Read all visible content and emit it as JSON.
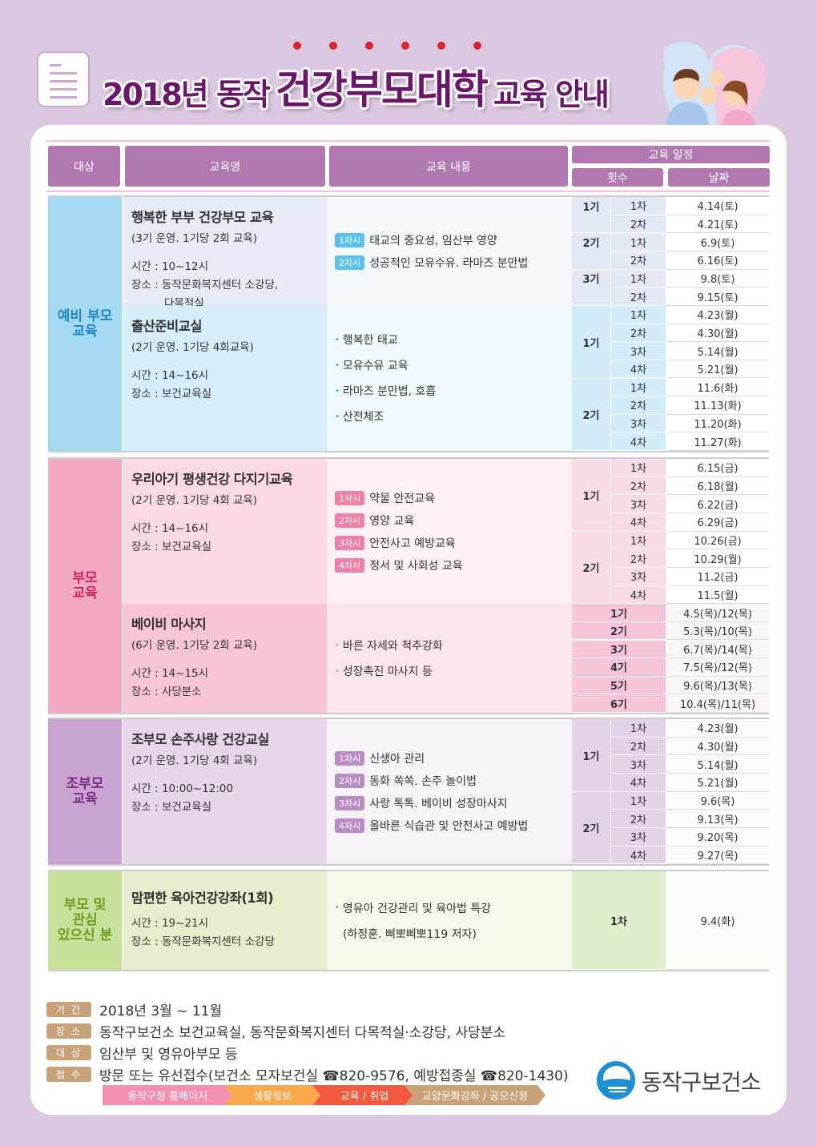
{
  "title": {
    "part1": "2018년 동작",
    "part2": "건강부모대학",
    "part3": "교육 안내"
  },
  "header": {
    "target": "대상",
    "name": "교육명",
    "content": "교육 내용",
    "schedule": "교육 일정",
    "term": "횟수",
    "date": "날짜"
  },
  "colors": {
    "header": "#b077b0",
    "title": "#6a176b",
    "accent_dots": "#d9252f"
  },
  "sections": [
    {
      "target": "예비 부모\n교육",
      "color": "#1f86c8",
      "tbg": "#a3d9f1",
      "badge": "#5bc0eb",
      "bullet": "#2ea7e0",
      "programs": [
        {
          "name": "행복한 부부 건강부모 교육",
          "sub": "(3기 운영. 1기당 2회 교육)",
          "time": "시간 : 10~12시",
          "place": [
            "장소 : 동작문화복지센터 소강당,",
            "다목적실"
          ],
          "nbg": "#e6ebf6",
          "cbg": "#f4f7fc",
          "sbg": "#e3e8f5",
          "dbg": "#ffffff",
          "content": [
            {
              "badge": "1차시",
              "text": "태교의 중요성, 임산부 영양"
            },
            {
              "badge": "2차시",
              "text": "성공적인 모유수유. 라마즈 분만법"
            }
          ],
          "groups": [
            {
              "term": "1기",
              "top": true,
              "rows": [
                [
                  "1차",
                  "4.14(토)"
                ],
                [
                  "2차",
                  "4.21(토)"
                ]
              ]
            },
            {
              "term": "2기",
              "top": true,
              "rows": [
                [
                  "1차",
                  "6.9(토)"
                ],
                [
                  "2차",
                  "6.16(토)"
                ]
              ]
            },
            {
              "term": "3기",
              "top": true,
              "rows": [
                [
                  "1차",
                  "9.8(토)"
                ],
                [
                  "2차",
                  "9.15(토)"
                ]
              ]
            }
          ]
        },
        {
          "name": "출산준비교실",
          "sub": "(2기 운영. 1기당 4회교육)",
          "time": "시간 : 14~16시",
          "place": [
            "장소 : 보건교육실"
          ],
          "nbg": "#d6eefa",
          "cbg": "#f0f9fe",
          "sbg": "#d3ecf9",
          "dbg": "#ffffff",
          "content": [
            {
              "bullet": "행복한 태교"
            },
            {
              "bullet": "모유수유 교육"
            },
            {
              "bullet": "라마즈 분만법, 호흡"
            },
            {
              "bullet": "산전체조"
            }
          ],
          "groups": [
            {
              "term": "1기",
              "rows": [
                [
                  "1차",
                  "4.23(월)"
                ],
                [
                  "2차",
                  "4.30(월)"
                ],
                [
                  "3차",
                  "5.14(월)"
                ],
                [
                  "4차",
                  "5.21(월)"
                ]
              ]
            },
            {
              "term": "2기",
              "rows": [
                [
                  "1차",
                  "11.6(화)"
                ],
                [
                  "2차",
                  "11.13(화)"
                ],
                [
                  "3차",
                  "11.20(화)"
                ],
                [
                  "4차",
                  "11.27(화)"
                ]
              ]
            }
          ]
        }
      ]
    },
    {
      "target": "부모\n교육",
      "color": "#d3245b",
      "tbg": "#f4a9c3",
      "badge": "#f07fa3",
      "bullet": "#f39a3c",
      "programs": [
        {
          "name": "우리아기 평생건강 다지기교육",
          "sub": "(2기 운영. 1기당 4회 교육)",
          "time": "시간 : 14~16시",
          "place": [
            "장소 : 보건교육실"
          ],
          "nbg": "#fad9e3",
          "cbg": "#fdf1f5",
          "sbg": "#fadbe5",
          "dbg": "#ffffff",
          "content": [
            {
              "badge": "1차시",
              "text": "약물 안전교육"
            },
            {
              "badge": "2차시",
              "text": "영양 교육"
            },
            {
              "badge": "3차시",
              "text": "안전사고 예방교육"
            },
            {
              "badge": "4차시",
              "text": "정서 및 사회성 교육"
            }
          ],
          "groups": [
            {
              "term": "1기",
              "rows": [
                [
                  "1차",
                  "6.15(금)"
                ],
                [
                  "2차",
                  "6.18(월)"
                ],
                [
                  "3차",
                  "6.22(금)"
                ],
                [
                  "4차",
                  "6.29(금)"
                ]
              ]
            },
            {
              "term": "2기",
              "rows": [
                [
                  "1차",
                  "10.26(금)"
                ],
                [
                  "2차",
                  "10.29(월)"
                ],
                [
                  "3차",
                  "11.2(금)"
                ],
                [
                  "4차",
                  "11.5(월)"
                ]
              ]
            }
          ]
        },
        {
          "name": "베이비 마사지",
          "sub": "(6기 운영. 1기당 2회 교육)",
          "time": "시간 : 14~15시",
          "place": [
            "장소 : 사당분소"
          ],
          "nbg": "#f7c4d8",
          "cbg": "#fce6ee",
          "sbg": "#f6c4d8",
          "dbg": "#fdf6f8",
          "content": [
            {
              "bullet": "바른 자세와 척추강화"
            },
            {
              "bullet": "성장촉진 마사지 등"
            }
          ],
          "simple": [
            [
              "1기",
              "4.5(목)/12(목)"
            ],
            [
              "2기",
              "5.3(목)/10(목)"
            ],
            [
              "3기",
              "6.7(목)/14(목)"
            ],
            [
              "4기",
              "7.5(목)/12(목)"
            ],
            [
              "5기",
              "9.6(목)/13(목)"
            ],
            [
              "6기",
              "10.4(목)/11(목)"
            ]
          ]
        }
      ]
    },
    {
      "target": "조부모\n교육",
      "color": "#7b2b87",
      "tbg": "#caa4d0",
      "badge": "#b98cc4",
      "bullet": "#b98cc4",
      "programs": [
        {
          "name": "조부모 손주사랑 건강교실",
          "sub": "(2기 운영. 1기당 4회 교육)",
          "time": "시간 : 10:00~12:00",
          "place": [
            "장소 : 보건교육실"
          ],
          "nbg": "#e7d6ea",
          "cbg": "#f7f1f8",
          "sbg": "#e4d2e8",
          "dbg": "#fbfdf8",
          "content": [
            {
              "badge": "1차시",
              "text": "신생아 관리"
            },
            {
              "badge": "2차시",
              "text": "동화 쏙쏙. 손주 놀이법"
            },
            {
              "badge": "3차시",
              "text": "사랑 톡톡. 베이비 성장마사지"
            },
            {
              "badge": "4차시",
              "text": "올바른 식습관 및 안전사고 예방법"
            }
          ],
          "groups": [
            {
              "term": "1기",
              "rows": [
                [
                  "1차",
                  "4.23(월)"
                ],
                [
                  "2차",
                  "4.30(월)"
                ],
                [
                  "3차",
                  "5.14(월)"
                ],
                [
                  "4차",
                  "5.21(월)"
                ]
              ]
            },
            {
              "term": "2기",
              "rows": [
                [
                  "1차",
                  "9.6(목)"
                ],
                [
                  "2차",
                  "9.13(목)"
                ],
                [
                  "3차",
                  "9.20(목)"
                ],
                [
                  "4차",
                  "9.27(목)"
                ]
              ]
            }
          ]
        }
      ]
    },
    {
      "target": "부모 및\n관심\n있으신 분",
      "color": "#6c9c20",
      "tbg": "#c7e19b",
      "badge": "#8cc63f",
      "bullet": "#5bb04a",
      "single": true,
      "programs": [
        {
          "name": "맘편한 육아건강강좌(1회)",
          "time": "시간 : 19~21시",
          "place": [
            "장소 : 동작문화복지센터 소강당"
          ],
          "nbg": "#e3efcd",
          "cbg": "#f4f9ec",
          "sbg": "#e1eecb",
          "dbg": "#fbfdf7",
          "content": [
            {
              "bullet": "영유아 건강관리 및 육아법 특강"
            },
            {
              "plain": "(하정훈. 삐뽀삐뽀119 저자)"
            }
          ],
          "simple": [
            [
              "1차",
              "9.4(화)"
            ]
          ]
        }
      ]
    }
  ],
  "info": [
    {
      "label": "기간",
      "text": "2018년 3월 ~ 11월"
    },
    {
      "label": "장소",
      "text": "동작구보건소 보건교육실, 동작문화복지센터 다목적실·소강당, 사당분소"
    },
    {
      "label": "대상",
      "text": "임산부 및 영유아부모 등"
    },
    {
      "label": "접수",
      "text": "방문 또는 유선접수(보건소 모자보건실 ☎820-9576, 예방접종실 ☎820-1430)"
    }
  ],
  "nav": [
    {
      "label": "동작구청 홈페이지",
      "color": "#f48fb1"
    },
    {
      "label": "생활정보",
      "color": "#f9a94b"
    },
    {
      "label": "교육 / 취업",
      "color": "#f15a3f"
    },
    {
      "label": "교양문화강좌 / 공모신청",
      "color": "#c9a27a"
    }
  ],
  "logo": {
    "text": "동작구보건소"
  }
}
